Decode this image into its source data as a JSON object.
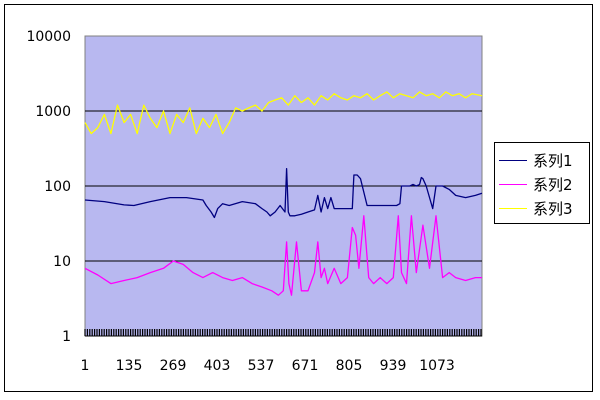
{
  "chart_data": {
    "type": "line",
    "title": "",
    "xlabel": "",
    "ylabel": "",
    "yscale": "log",
    "ylim": [
      1,
      10000
    ],
    "xlim": [
      1,
      1210
    ],
    "grid": "horizontal major",
    "legend_position": "right",
    "plot_background": "#b8b8f0",
    "y_ticks": [
      "1",
      "10",
      "100",
      "1000",
      "10000"
    ],
    "x_ticks": [
      1,
      135,
      269,
      403,
      537,
      671,
      805,
      939,
      1073
    ],
    "x_tick_labels": [
      "1",
      "135",
      "269",
      "403",
      "537",
      "671",
      "805",
      "939",
      "1073"
    ],
    "series": [
      {
        "name": "系列1",
        "color": "#000080",
        "x": [
          1,
          60,
          120,
          150,
          200,
          260,
          310,
          360,
          370,
          385,
          395,
          405,
          420,
          440,
          480,
          520,
          540,
          555,
          565,
          580,
          595,
          610,
          615,
          620,
          625,
          640,
          660,
          680,
          700,
          710,
          720,
          730,
          740,
          750,
          760,
          780,
          800,
          815,
          820,
          830,
          840,
          860,
          900,
          950,
          960,
          965,
          970,
          975,
          990,
          1000,
          1010,
          1020,
          1025,
          1030,
          1040,
          1060,
          1070,
          1090,
          1110,
          1130,
          1160,
          1190,
          1210
        ],
        "y": [
          65,
          62,
          56,
          55,
          62,
          70,
          70,
          65,
          55,
          45,
          38,
          50,
          58,
          55,
          62,
          58,
          50,
          45,
          40,
          45,
          55,
          45,
          170,
          45,
          40,
          40,
          42,
          45,
          48,
          75,
          45,
          70,
          50,
          70,
          50,
          50,
          50,
          50,
          140,
          140,
          125,
          55,
          55,
          55,
          58,
          100,
          100,
          100,
          100,
          105,
          100,
          105,
          130,
          125,
          100,
          50,
          100,
          100,
          90,
          75,
          70,
          75,
          80
        ]
      },
      {
        "name": "系列2",
        "color": "#ff00ff",
        "x": [
          1,
          40,
          80,
          120,
          160,
          200,
          240,
          270,
          300,
          330,
          360,
          390,
          420,
          450,
          480,
          510,
          540,
          570,
          590,
          605,
          615,
          622,
          630,
          645,
          660,
          680,
          700,
          710,
          720,
          730,
          740,
          760,
          780,
          800,
          815,
          825,
          835,
          850,
          865,
          880,
          900,
          920,
          940,
          955,
          965,
          980,
          995,
          1010,
          1030,
          1050,
          1070,
          1090,
          1110,
          1130,
          1160,
          1190,
          1210
        ],
        "y": [
          8,
          6.5,
          5,
          5.5,
          6,
          7,
          8,
          10,
          9,
          7,
          6,
          7,
          6,
          5.5,
          6,
          5,
          4.5,
          4,
          3.5,
          4,
          18,
          5,
          3.5,
          18,
          4,
          4,
          7,
          18,
          6,
          8,
          5,
          8,
          5,
          6,
          28,
          22,
          8,
          40,
          6,
          5,
          6,
          5,
          6,
          40,
          7,
          5,
          40,
          7,
          30,
          8,
          40,
          6,
          7,
          6,
          5.5,
          6,
          6
        ]
      },
      {
        "name": "系列3",
        "color": "#ffff00",
        "x": [
          1,
          20,
          40,
          60,
          80,
          100,
          120,
          140,
          160,
          180,
          200,
          220,
          240,
          260,
          280,
          300,
          320,
          340,
          360,
          380,
          400,
          420,
          440,
          460,
          480,
          500,
          520,
          540,
          560,
          580,
          600,
          620,
          640,
          660,
          680,
          700,
          720,
          740,
          760,
          780,
          800,
          820,
          840,
          860,
          880,
          900,
          920,
          940,
          960,
          980,
          1000,
          1020,
          1040,
          1060,
          1080,
          1100,
          1120,
          1140,
          1160,
          1180,
          1210
        ],
        "y": [
          700,
          500,
          600,
          900,
          500,
          1200,
          700,
          900,
          500,
          1200,
          800,
          600,
          1000,
          500,
          900,
          700,
          1100,
          500,
          800,
          600,
          900,
          500,
          700,
          1100,
          1000,
          1100,
          1200,
          1000,
          1300,
          1400,
          1500,
          1200,
          1600,
          1300,
          1500,
          1200,
          1600,
          1400,
          1700,
          1500,
          1400,
          1600,
          1500,
          1700,
          1400,
          1600,
          1800,
          1500,
          1700,
          1600,
          1500,
          1800,
          1600,
          1700,
          1500,
          1800,
          1600,
          1700,
          1500,
          1700,
          1600
        ]
      }
    ]
  }
}
